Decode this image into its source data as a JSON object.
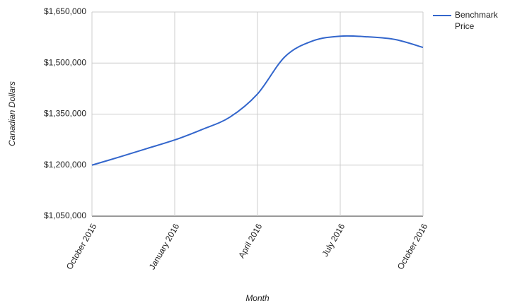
{
  "chart_data": {
    "type": "line",
    "x_label": "Month",
    "y_label": "Canadian Dollars",
    "categories": [
      "October 2015",
      null,
      null,
      "January 2016",
      null,
      null,
      "April 2016",
      null,
      null,
      "July 2016",
      null,
      null,
      "October 2016"
    ],
    "series": [
      {
        "name": "Benchmark Price",
        "color": "#3366cc",
        "values": [
          1200000,
          1224000,
          1249000,
          1274000,
          1305000,
          1341000,
          1409000,
          1519000,
          1565000,
          1579000,
          1577000,
          1569000,
          1546000
        ]
      }
    ],
    "ylim": [
      1050000,
      1650000
    ],
    "yticks": [
      {
        "value": 1050000,
        "label": "$1,050,000"
      },
      {
        "value": 1200000,
        "label": "$1,200,000"
      },
      {
        "value": 1350000,
        "label": "$1,350,000"
      },
      {
        "value": 1500000,
        "label": "$1,500,000"
      },
      {
        "value": 1650000,
        "label": "$1,650,000"
      }
    ],
    "grid": true,
    "legend": "right"
  }
}
